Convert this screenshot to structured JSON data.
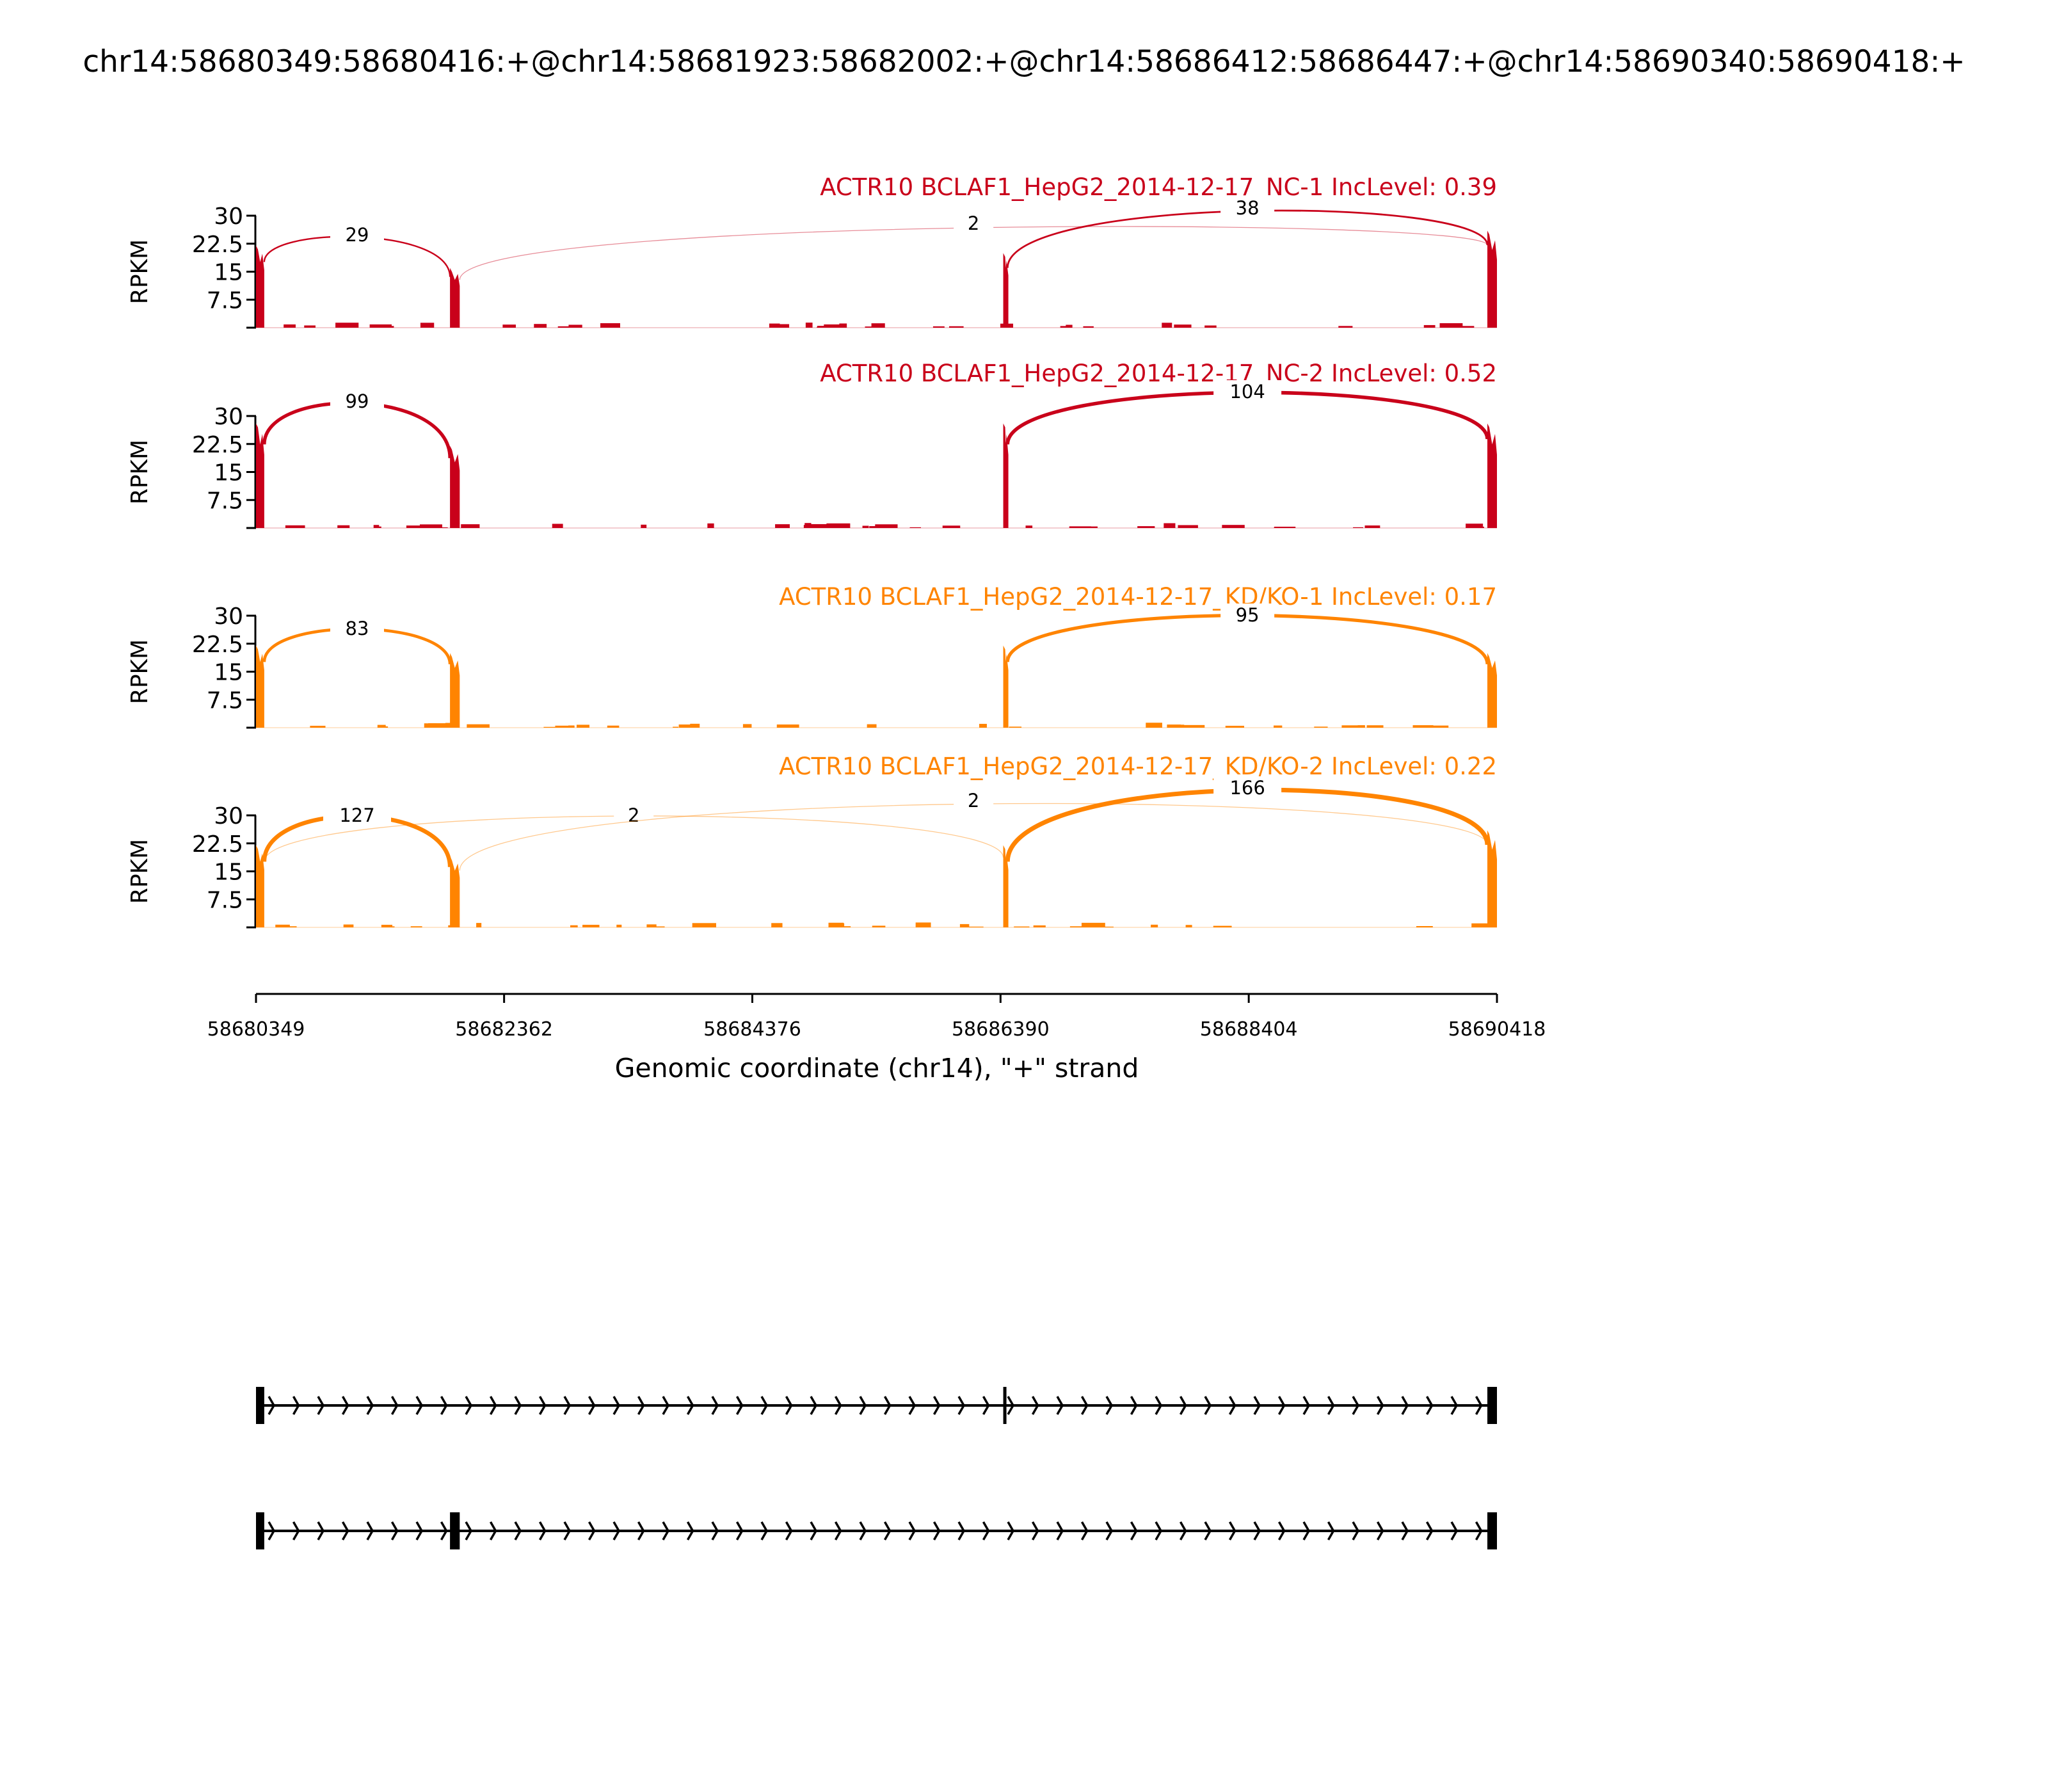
{
  "chart_data": {
    "type": "area",
    "title": "chr14:58680349:58680416:+@chr14:58681923:58682002:+@chr14:58686412:58686447:+@chr14:58690340:58690418:+",
    "xlabel": "Genomic coordinate (chr14), \"+\" strand",
    "ylabel": "RPKM",
    "xlim": [
      58680349,
      58690418
    ],
    "ylim": [
      0,
      30
    ],
    "x_ticks": [
      "58680349",
      "58682362",
      "58684376",
      "58686390",
      "58688404",
      "58690418"
    ],
    "y_ticks": [
      "7.5",
      "15",
      "22.5",
      "30"
    ],
    "colors": {
      "NC": "#c9001a",
      "KD": "#ff8400",
      "gene": "#000000"
    },
    "exons": [
      [
        58680349,
        58680416
      ],
      [
        58681923,
        58682002
      ],
      [
        58686412,
        58686447
      ],
      [
        58690340,
        58690418
      ]
    ],
    "panels": [
      {
        "title": "ACTR10 BCLAF1_HepG2_2014-12-17_NC-1 IncLevel: 0.39",
        "group": "NC",
        "exon_coverage": [
          22,
          16,
          20,
          26
        ],
        "junctions": [
          {
            "from": 0,
            "to": 1,
            "count": "29"
          },
          {
            "from": 1,
            "to": 3,
            "count": "2"
          },
          {
            "from": 2,
            "to": 3,
            "count": "38"
          }
        ]
      },
      {
        "title": "ACTR10 BCLAF1_HepG2_2014-12-17_NC-2 IncLevel: 0.52",
        "group": "NC",
        "exon_coverage": [
          28,
          22,
          28,
          28
        ],
        "junctions": [
          {
            "from": 0,
            "to": 1,
            "count": "99"
          },
          {
            "from": 2,
            "to": 3,
            "count": "104"
          }
        ]
      },
      {
        "title": "ACTR10 BCLAF1_HepG2_2014-12-17_KD/KO-1 IncLevel: 0.17",
        "group": "KD",
        "exon_coverage": [
          22,
          20,
          22,
          20
        ],
        "junctions": [
          {
            "from": 0,
            "to": 1,
            "count": "83"
          },
          {
            "from": 2,
            "to": 3,
            "count": "95"
          }
        ]
      },
      {
        "title": "ACTR10 BCLAF1_HepG2_2014-12-17_KD/KO-2 IncLevel: 0.22",
        "group": "KD",
        "exon_coverage": [
          22,
          19,
          22,
          26
        ],
        "junctions": [
          {
            "from": 0,
            "to": 1,
            "count": "127"
          },
          {
            "from": 0,
            "to": 2,
            "count": "2"
          },
          {
            "from": 1,
            "to": 3,
            "count": "2"
          },
          {
            "from": 2,
            "to": 3,
            "count": "166"
          }
        ]
      }
    ],
    "isoforms": [
      {
        "exons": [
          0,
          2,
          3
        ]
      },
      {
        "exons": [
          0,
          1,
          3
        ]
      }
    ]
  }
}
